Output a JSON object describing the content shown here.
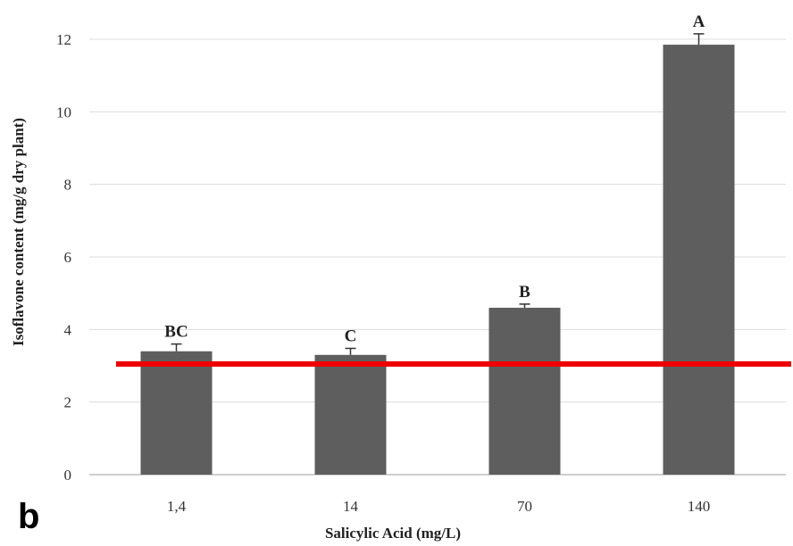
{
  "panel_label": "b",
  "chart_data": {
    "type": "bar",
    "categories": [
      "1,4",
      "14",
      "70",
      "140"
    ],
    "values": [
      3.4,
      3.3,
      4.6,
      11.85
    ],
    "errors": [
      0.2,
      0.18,
      0.1,
      0.3
    ],
    "significance_letters": [
      "BC",
      "C",
      "B",
      "A"
    ],
    "xlabel": "Salicylic Acid (mg/L)",
    "ylabel": "Isoflavone content (mg/g dry plant)",
    "ylim": [
      0,
      12
    ],
    "yticks": [
      "0",
      "2",
      "4",
      "6",
      "8",
      "10",
      "12"
    ],
    "grid": true,
    "reference_line": {
      "value": 3.05,
      "color": "#ee0000"
    },
    "bar_color": "#5e5e5e"
  }
}
